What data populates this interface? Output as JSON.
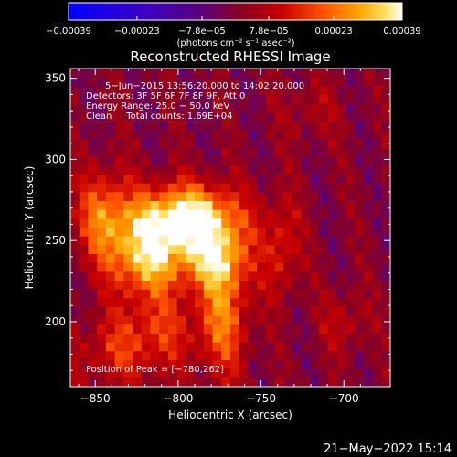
{
  "chart_data": {
    "type": "heatmap",
    "title": "Reconstructed RHESSI Image",
    "xlabel": "Heliocentric X (arcsec)",
    "ylabel": "Heliocentric Y (arcsec)",
    "xlim": [
      -865,
      -672
    ],
    "ylim": [
      160,
      356
    ],
    "x_ticks": [
      -850,
      -800,
      -750,
      -700
    ],
    "x_tick_labels": [
      "−850",
      "−800",
      "−750",
      "−700"
    ],
    "y_ticks": [
      200,
      250,
      300,
      350
    ],
    "y_tick_labels": [
      "200",
      "250",
      "300",
      "350"
    ],
    "colorbar": {
      "range": [
        -0.00039,
        0.00039
      ],
      "tick_values": [
        -0.00039,
        -0.00023,
        -7.8e-05,
        7.8e-05,
        0.00023,
        0.00039
      ],
      "tick_labels": [
        "−0.00039",
        "−0.00023",
        "−7.8e−05",
        "7.8e−05",
        "0.00023",
        "0.00039"
      ],
      "units": "(photons cm⁻² s⁻¹ asec⁻²)"
    },
    "annotations": [
      "5−Jun−2015 13:56:20.000 to 14:02:20.000",
      "Detectors: 3F 5F 6F 7F 8F 9F, Att 0",
      "Energy Range: 25.0 − 50.0 keV",
      "Clean     Total counts: 1.69E+04"
    ],
    "peak_label": "Position of Peak = [−780,262]",
    "peak": [
      -780,
      262
    ],
    "timestamp": "21−May−2022 15:14",
    "sources": [
      {
        "x": -795,
        "y": 265,
        "sx": 22,
        "sy": 14,
        "amp": 0.00039
      },
      {
        "x": -818,
        "y": 240,
        "sx": 16,
        "sy": 16,
        "amp": 0.00032
      },
      {
        "x": -778,
        "y": 240,
        "sx": 14,
        "sy": 14,
        "amp": 0.00026
      },
      {
        "x": -845,
        "y": 265,
        "sx": 12,
        "sy": 20,
        "amp": 0.00022
      },
      {
        "x": -772,
        "y": 205,
        "sx": 10,
        "sy": 28,
        "amp": 0.00022
      },
      {
        "x": -812,
        "y": 195,
        "sx": 20,
        "sy": 18,
        "amp": 0.00014
      },
      {
        "x": -738,
        "y": 245,
        "sx": 8,
        "sy": 22,
        "amp": 0.00014
      },
      {
        "x": -840,
        "y": 180,
        "sx": 18,
        "sy": 15,
        "amp": 0.0001
      },
      {
        "x": -700,
        "y": 200,
        "sx": 10,
        "sy": 14,
        "amp": 9e-05
      },
      {
        "x": -720,
        "y": 330,
        "sx": 14,
        "sy": 14,
        "amp": 6e-05
      }
    ]
  }
}
